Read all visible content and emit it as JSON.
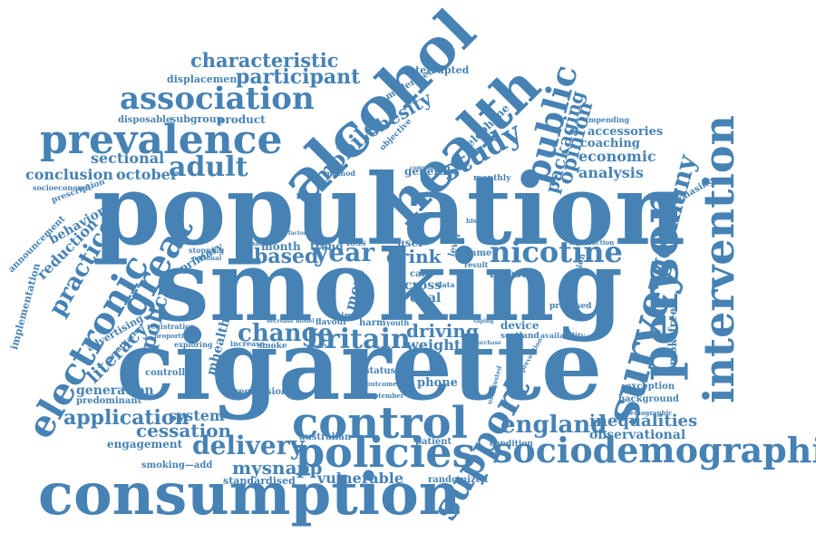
{
  "word_color": "#4682b4",
  "background": "#ffffff",
  "words": [
    "population",
    "smoking",
    "cigarette",
    "consumption",
    "alcohol",
    "health",
    "sociodemographic",
    "intervention",
    "person",
    "survey",
    "control",
    "policies",
    "prevalence",
    "electronic",
    "support",
    "public",
    "association",
    "great",
    "britain",
    "nicotine",
    "study",
    "adult",
    "characteristic",
    "participant",
    "germany",
    "mobile",
    "england",
    "change",
    "delivery",
    "application",
    "practice",
    "mysnapp",
    "cessation",
    "policy",
    "literacy",
    "based",
    "year",
    "drink",
    "driving",
    "weight",
    "obesity",
    "packaging",
    "opinion",
    "analysis",
    "economic",
    "coaching",
    "accessories",
    "inequalities",
    "observational",
    "background",
    "exception",
    "smokefree",
    "purchasing",
    "conclusion",
    "october",
    "sectional",
    "reduction",
    "behavior",
    "generation",
    "predominant",
    "implementation",
    "announcement",
    "engagement",
    "system",
    "standardised",
    "vulnerable",
    "randomized",
    "patient",
    "australian",
    "displacement",
    "subgroup",
    "product",
    "disposable",
    "interrupted",
    "moderated",
    "objective",
    "telephone",
    "regression",
    "controlled",
    "mhealth",
    "primary",
    "trend",
    "month",
    "general",
    "monthly",
    "cross",
    "dual",
    "care",
    "measure",
    "phone",
    "device",
    "scotland",
    "status",
    "harm",
    "youth",
    "flavour",
    "proposed",
    "regulation",
    "introduction",
    "advertising",
    "quantitative",
    "registration",
    "proportion",
    "exploring",
    "increase",
    "smoke",
    "stopping",
    "national",
    "socioeconomic",
    "prescription",
    "demographic",
    "condition",
    "availability",
    "prevention",
    "impending",
    "smoking—add",
    "more",
    "user",
    "level",
    "loss",
    "game",
    "result",
    "component",
    "method",
    "source",
    "data",
    "september",
    "outcome",
    "time",
    "impact",
    "factory",
    "unadjusted",
    "history",
    "vaping",
    "purchase",
    "decrease",
    "model",
    "quarter"
  ]
}
